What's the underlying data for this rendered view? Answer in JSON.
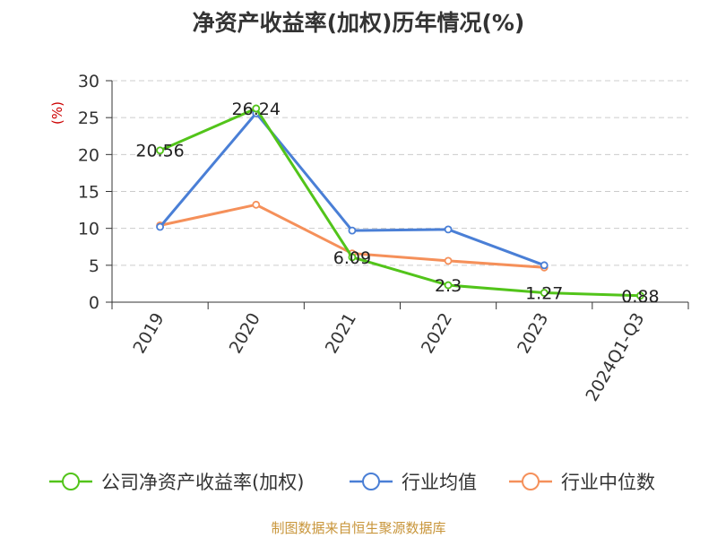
{
  "chart_data": {
    "type": "line",
    "title": "净资产收益率(加权)历年情况(%)",
    "ylabel": "(%)",
    "xlabel": "",
    "ylim": [
      0,
      30
    ],
    "yticks": [
      0,
      5,
      10,
      15,
      20,
      25,
      30
    ],
    "grid": true,
    "legend_position": "bottom",
    "categories": [
      "2019",
      "2020",
      "2021",
      "2022",
      "2023",
      "2024Q1-Q3"
    ],
    "series": [
      {
        "name": "公司净资产收益率(加权)",
        "color": "#52c41a",
        "values": [
          20.56,
          26.24,
          6.09,
          2.3,
          1.27,
          0.88
        ],
        "labels": [
          "20.56",
          "26.24",
          "6.09",
          "2.3",
          "1.27",
          "0.88"
        ]
      },
      {
        "name": "行业均值",
        "color": "#4a7fd6",
        "values": [
          10.2,
          25.6,
          9.7,
          9.85,
          5.0,
          null
        ]
      },
      {
        "name": "行业中位数",
        "color": "#f5905a",
        "values": [
          10.4,
          13.2,
          6.6,
          5.6,
          4.7,
          null
        ]
      }
    ]
  },
  "colors": {
    "unit_label": "#cc0000",
    "source": "#c8953a",
    "grid": "#cccccc",
    "axis": "#333333"
  },
  "source": "制图数据来自恒生聚源数据库"
}
